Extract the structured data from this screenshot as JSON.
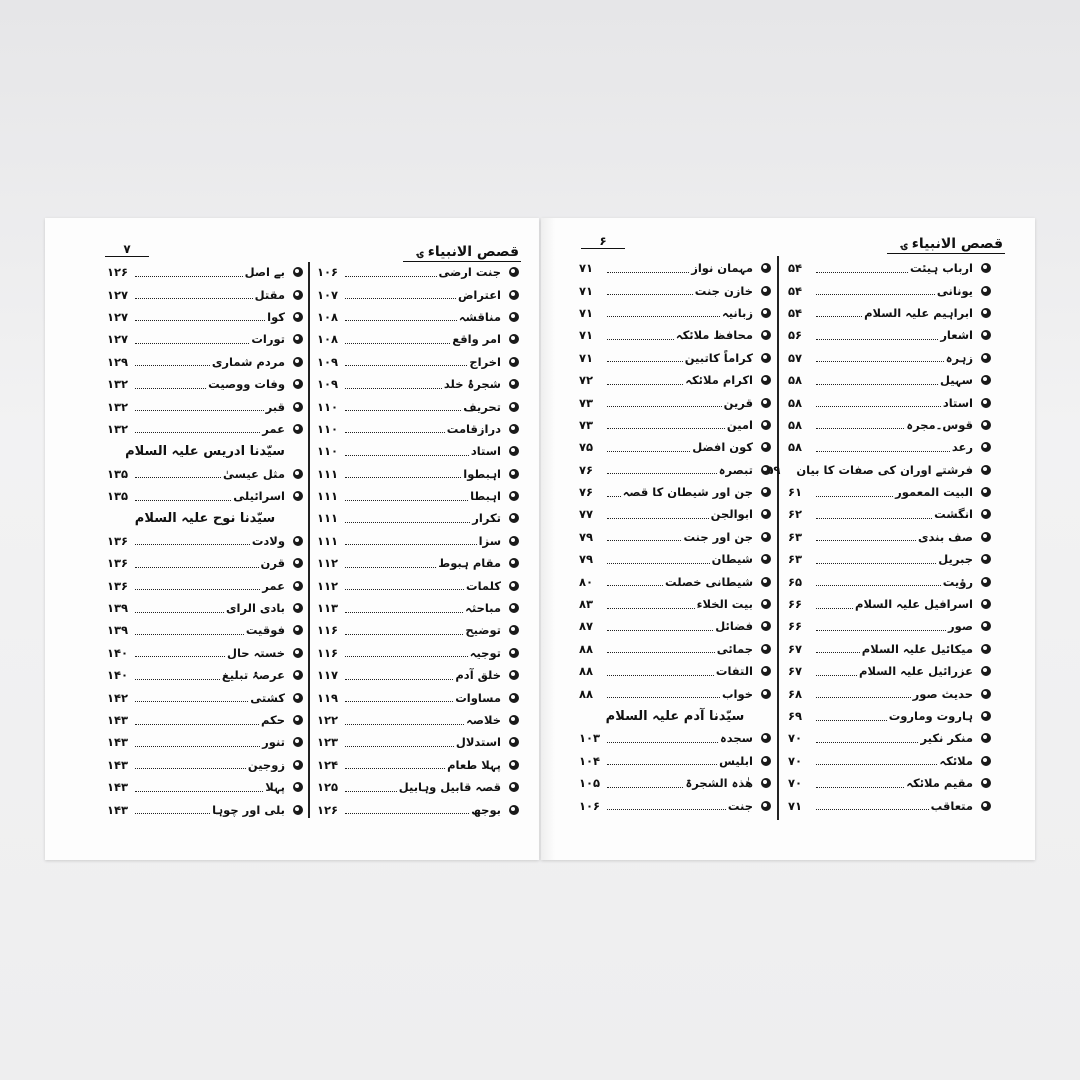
{
  "book_title": "قصص الانبیاء",
  "left_page": {
    "page_number": "۷",
    "columns": [
      [
        {
          "title": "جنت ارضی",
          "page": "۱۰۶"
        },
        {
          "title": "اعتراض",
          "page": "۱۰۷"
        },
        {
          "title": "مناقشہ",
          "page": "۱۰۸"
        },
        {
          "title": "امر واقع",
          "page": "۱۰۸"
        },
        {
          "title": "اخراج",
          "page": "۱۰۹"
        },
        {
          "title": "شجرۂ خلد",
          "page": "۱۰۹"
        },
        {
          "title": "تحریف",
          "page": "۱۱۰"
        },
        {
          "title": "درازقامت",
          "page": "۱۱۰"
        },
        {
          "title": "استاد",
          "page": "۱۱۰"
        },
        {
          "title": "اہبطوا",
          "page": "۱۱۱"
        },
        {
          "title": "اہبطا",
          "page": "۱۱۱"
        },
        {
          "title": "تکرار",
          "page": "۱۱۱"
        },
        {
          "title": "سزا",
          "page": "۱۱۱"
        },
        {
          "title": "مقام ہبوط",
          "page": "۱۱۲"
        },
        {
          "title": "کلمات",
          "page": "۱۱۲"
        },
        {
          "title": "مباحثہ",
          "page": "۱۱۳"
        },
        {
          "title": "توضیح",
          "page": "۱۱۶"
        },
        {
          "title": "توجیہ",
          "page": "۱۱۶"
        },
        {
          "title": "خلق آدم",
          "page": "۱۱۷"
        },
        {
          "title": "مساوات",
          "page": "۱۱۹"
        },
        {
          "title": "خلاصہ",
          "page": "۱۲۲"
        },
        {
          "title": "استدلال",
          "page": "۱۲۳"
        },
        {
          "title": "پہلا طعام",
          "page": "۱۲۴"
        },
        {
          "title": "قصہ قابیل وہابیل",
          "page": "۱۲۵"
        },
        {
          "title": "بوجھ",
          "page": "۱۲۶"
        }
      ],
      [
        {
          "title": "بے اصل",
          "page": "۱۲۶"
        },
        {
          "title": "مقتل",
          "page": "۱۲۷"
        },
        {
          "title": "کوا",
          "page": "۱۲۷"
        },
        {
          "title": "تورات",
          "page": "۱۲۷"
        },
        {
          "title": "مردم شماری",
          "page": "۱۲۹"
        },
        {
          "title": "وفات ووصیت",
          "page": "۱۳۲"
        },
        {
          "title": "قبر",
          "page": "۱۳۲"
        },
        {
          "title": "عمر",
          "page": "۱۳۲"
        },
        {
          "heading": "سیّدنا ادریس علیہ السلام"
        },
        {
          "title": "مثل عیسیٰ",
          "page": "۱۳۵"
        },
        {
          "title": "اسرائیلی",
          "page": "۱۳۵"
        },
        {
          "heading": "سیّدنا نوح علیہ السلام"
        },
        {
          "title": "ولادت",
          "page": "۱۳۶"
        },
        {
          "title": "قرن",
          "page": "۱۳۶"
        },
        {
          "title": "عمر",
          "page": "۱۳۶"
        },
        {
          "title": "بادی الرای",
          "page": "۱۳۹"
        },
        {
          "title": "فوقیت",
          "page": "۱۳۹"
        },
        {
          "title": "خستہ حال",
          "page": "۱۴۰"
        },
        {
          "title": "عرصۂ تبلیغ",
          "page": "۱۴۰"
        },
        {
          "title": "کشتی",
          "page": "۱۴۲"
        },
        {
          "title": "حکم",
          "page": "۱۴۳"
        },
        {
          "title": "تنور",
          "page": "۱۴۳"
        },
        {
          "title": "زوجین",
          "page": "۱۴۳"
        },
        {
          "title": "پہلا",
          "page": "۱۴۳"
        },
        {
          "title": "بلی اور چوہا",
          "page": "۱۴۳"
        }
      ]
    ]
  },
  "right_page": {
    "page_number": "۶",
    "columns": [
      [
        {
          "title": "ارباب ہیئت",
          "page": "۵۴"
        },
        {
          "title": "یونانی",
          "page": "۵۴"
        },
        {
          "title": "ابراہیم علیہ السلام",
          "page": "۵۴"
        },
        {
          "title": "اشعار",
          "page": "۵۶"
        },
        {
          "title": "زہرہ",
          "page": "۵۷"
        },
        {
          "title": "سہیل",
          "page": "۵۸"
        },
        {
          "title": "استاد",
          "page": "۵۸"
        },
        {
          "title": "قوس۔مجرہ",
          "page": "۵۸"
        },
        {
          "title": "رعد",
          "page": "۵۸"
        },
        {
          "title": "فرشتے اوران کی صفات کا بیان",
          "page": "۵۹"
        },
        {
          "title": "البیت المعمور",
          "page": "۶۱"
        },
        {
          "title": "انگشت",
          "page": "۶۲"
        },
        {
          "title": "صف بندی",
          "page": "۶۳"
        },
        {
          "title": "جبریل",
          "page": "۶۳"
        },
        {
          "title": "رؤیت",
          "page": "۶۵"
        },
        {
          "title": "اسرافیل علیہ السلام",
          "page": "۶۶"
        },
        {
          "title": "صور",
          "page": "۶۶"
        },
        {
          "title": "میکائیل علیہ السلام",
          "page": "۶۷"
        },
        {
          "title": "عزرائیل علیہ السلام",
          "page": "۶۷"
        },
        {
          "title": "حدیث صور",
          "page": "۶۸"
        },
        {
          "title": "ہاروت وماروت",
          "page": "۶۹"
        },
        {
          "title": "منکر نکیر",
          "page": "۷۰"
        },
        {
          "title": "ملائکہ",
          "page": "۷۰"
        },
        {
          "title": "مقیم ملائکہ",
          "page": "۷۰"
        },
        {
          "title": "متعاقب",
          "page": "۷۱"
        }
      ],
      [
        {
          "title": "مہمان نواز",
          "page": "۷۱"
        },
        {
          "title": "خازن جنت",
          "page": "۷۱"
        },
        {
          "title": "زبانیہ",
          "page": "۷۱"
        },
        {
          "title": "محافظ ملائکہ",
          "page": "۷۱"
        },
        {
          "title": "کراماً کاتبین",
          "page": "۷۱"
        },
        {
          "title": "اکرام ملائکہ",
          "page": "۷۲"
        },
        {
          "title": "قرین",
          "page": "۷۳"
        },
        {
          "title": "امین",
          "page": "۷۳"
        },
        {
          "title": "کون افضل",
          "page": "۷۵"
        },
        {
          "title": "تبصرہ",
          "page": "۷۶"
        },
        {
          "title": "جن اور شیطان کا قصہ",
          "page": "۷۶"
        },
        {
          "title": "ابوالجن",
          "page": "۷۷"
        },
        {
          "title": "جن اور جنت",
          "page": "۷۹"
        },
        {
          "title": "شیطان",
          "page": "۷۹"
        },
        {
          "title": "شیطانی خصلت",
          "page": "۸۰"
        },
        {
          "title": "بیت الخلاء",
          "page": "۸۳"
        },
        {
          "title": "فضائل",
          "page": "۸۷"
        },
        {
          "title": "جمائی",
          "page": "۸۸"
        },
        {
          "title": "التفات",
          "page": "۸۸"
        },
        {
          "title": "خواب",
          "page": "۸۸"
        },
        {
          "heading": "سیّدنا آدم علیہ السلام"
        },
        {
          "title": "سجدہ",
          "page": "۱۰۳"
        },
        {
          "title": "ابلیس",
          "page": "۱۰۴"
        },
        {
          "title": "ھٰذہ الشجرۃ",
          "page": "۱۰۵"
        },
        {
          "title": "جنت",
          "page": "۱۰۶"
        }
      ]
    ]
  }
}
